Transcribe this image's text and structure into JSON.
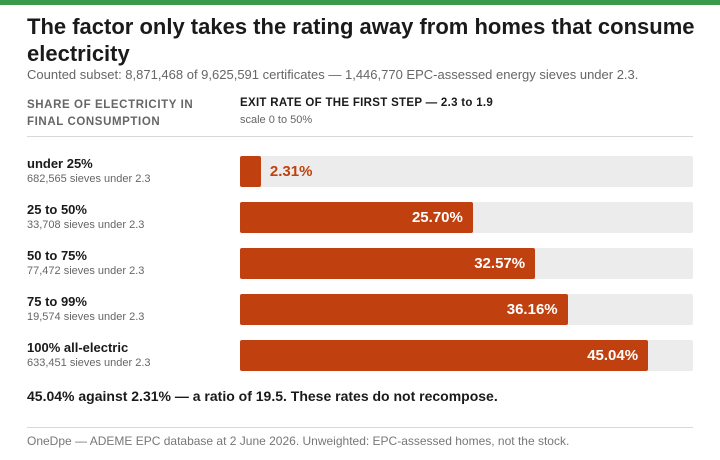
{
  "title": "The factor only takes the rating away from homes that consume electricity",
  "subtitle": "Counted subset: 8,871,468 of 9,625,591 certificates — 1,446,770 EPC-assessed energy sieves under 2.3.",
  "left_header": "SHARE OF ELECTRICITY IN FINAL CONSUMPTION",
  "right_header": "EXIT RATE OF THE FIRST STEP — 2.3 to 1.9",
  "scale_note": "scale 0 to 50%",
  "conclusion": "45.04% against 2.31% — a ratio of 19.5. These rates do not recompose.",
  "footer": "OneDpe — ADEME EPC database at 2 June 2026. Unweighted: EPC-assessed homes, not the stock.",
  "colors": {
    "bar": "#c0410f",
    "track": "#ececec",
    "accent_top": "#3a9a4a"
  },
  "chart_data": {
    "type": "bar",
    "orientation": "horizontal",
    "xlim": [
      0,
      50
    ],
    "grid": false,
    "categories": [
      "under 25%",
      "25 to 50%",
      "50 to 75%",
      "75 to 99%",
      "100% all-electric"
    ],
    "counts": [
      "682,565 sieves under 2.3",
      "33,708 sieves under 2.3",
      "77,472 sieves under 2.3",
      "19,574 sieves under 2.3",
      "633,451 sieves under 2.3"
    ],
    "values": [
      2.31,
      25.7,
      32.57,
      36.16,
      45.04
    ],
    "value_labels": [
      "2.31%",
      "25.70%",
      "32.57%",
      "36.16%",
      "45.04%"
    ]
  }
}
